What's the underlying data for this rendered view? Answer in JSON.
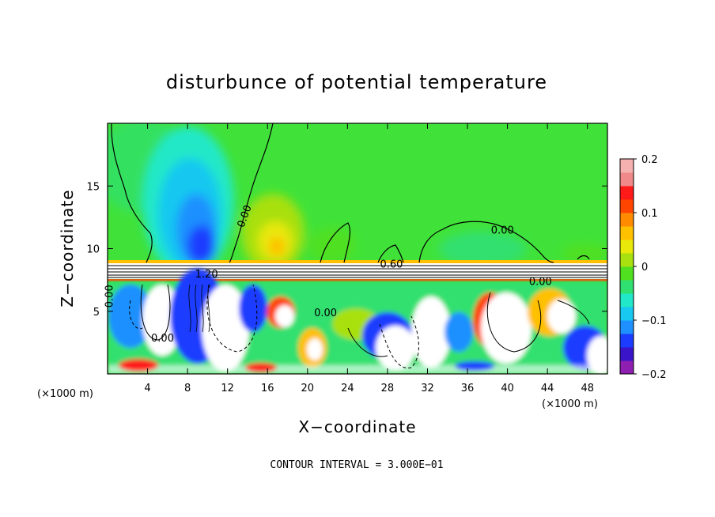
{
  "chart_data": {
    "type": "heatmap",
    "title": "disturbunce of potential temperature",
    "xlabel": "X−coordinate",
    "ylabel": "Z−coordinate",
    "x_unit": "(×1000 m)",
    "x_unit_right": "(×1000 m)",
    "xlim": [
      0,
      50
    ],
    "ylim": [
      0,
      20
    ],
    "x_ticks": [
      4,
      8,
      12,
      16,
      20,
      24,
      28,
      32,
      36,
      40,
      44,
      48
    ],
    "x_tick_labels": [
      "4",
      "8",
      "12",
      "16",
      "20",
      "24",
      "28",
      "32",
      "36",
      "40",
      "44",
      "48"
    ],
    "y_ticks": [
      5,
      10,
      15
    ],
    "y_tick_labels": [
      "5",
      "10",
      "15"
    ],
    "colorbar": {
      "range": [
        -0.2,
        0.2
      ],
      "ticks": [
        0.2,
        0.1,
        0,
        -0.1,
        -0.2
      ],
      "tick_labels": [
        "0.2",
        "0.1",
        "0",
        "−0.1",
        "−0.2"
      ],
      "colors": [
        "#8e1fb0",
        "#3a14c8",
        "#1c3cff",
        "#1e90ff",
        "#18c8f0",
        "#20e8c8",
        "#30e070",
        "#50e020",
        "#a8e010",
        "#e8e80a",
        "#ffc000",
        "#ff8c00",
        "#ff4500",
        "#ff1a1a",
        "#f08a8a",
        "#f5b0b0"
      ]
    },
    "contour_labels": [
      {
        "x": 14.0,
        "z": 12.5,
        "text": "0.00"
      },
      {
        "x": 39.5,
        "z": 11.2,
        "text": "0.00"
      },
      {
        "x": 28.4,
        "z": 8.5,
        "text": "0.60"
      },
      {
        "x": 9.9,
        "z": 7.7,
        "text": "1.20"
      },
      {
        "x": 21.8,
        "z": 4.6,
        "text": "0.00"
      },
      {
        "x": 5.5,
        "z": 2.6,
        "text": "0.00"
      },
      {
        "x": 0.5,
        "z": 6.2,
        "text": "0.00"
      },
      {
        "x": 43.3,
        "z": 7.1,
        "text": "0.00"
      }
    ],
    "contour_interval_label": "CONTOUR INTERVAL = 3.000E−01"
  }
}
